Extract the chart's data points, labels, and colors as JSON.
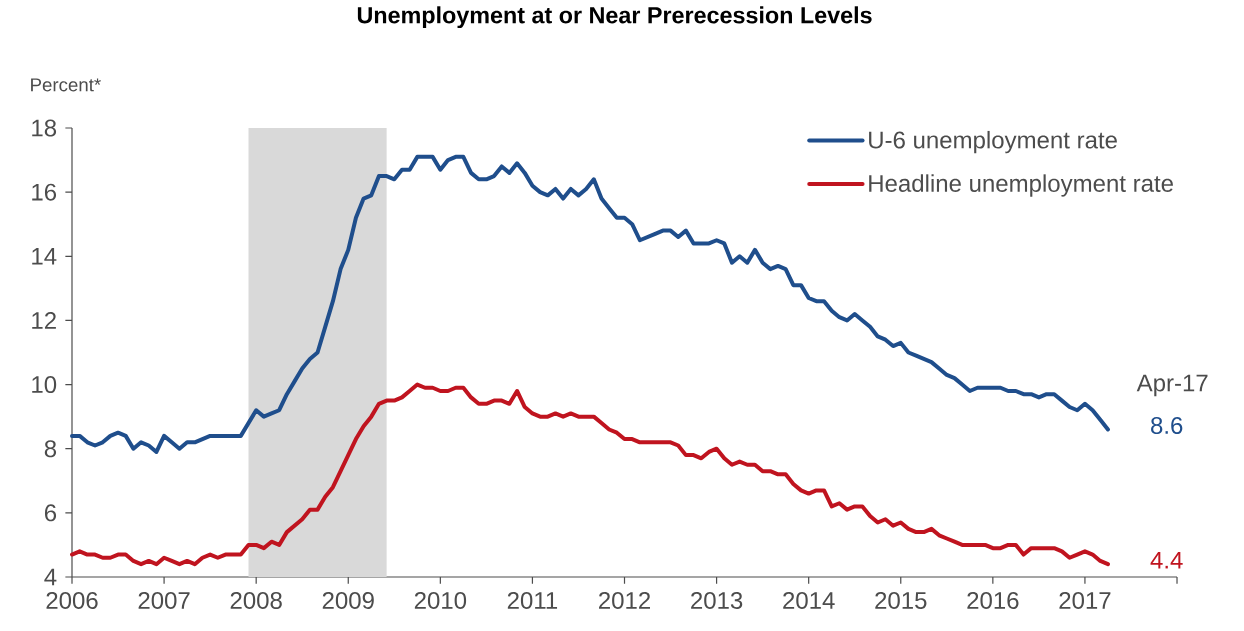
{
  "chart_data": {
    "type": "line",
    "title": "Unemployment at or Near Prerecession Levels",
    "ylabel": "Percent*",
    "x": [
      "2006-01",
      "2006-02",
      "2006-03",
      "2006-04",
      "2006-05",
      "2006-06",
      "2006-07",
      "2006-08",
      "2006-09",
      "2006-10",
      "2006-11",
      "2006-12",
      "2007-01",
      "2007-02",
      "2007-03",
      "2007-04",
      "2007-05",
      "2007-06",
      "2007-07",
      "2007-08",
      "2007-09",
      "2007-10",
      "2007-11",
      "2007-12",
      "2008-01",
      "2008-02",
      "2008-03",
      "2008-04",
      "2008-05",
      "2008-06",
      "2008-07",
      "2008-08",
      "2008-09",
      "2008-10",
      "2008-11",
      "2008-12",
      "2009-01",
      "2009-02",
      "2009-03",
      "2009-04",
      "2009-05",
      "2009-06",
      "2009-07",
      "2009-08",
      "2009-09",
      "2009-10",
      "2009-11",
      "2009-12",
      "2010-01",
      "2010-02",
      "2010-03",
      "2010-04",
      "2010-05",
      "2010-06",
      "2010-07",
      "2010-08",
      "2010-09",
      "2010-10",
      "2010-11",
      "2010-12",
      "2011-01",
      "2011-02",
      "2011-03",
      "2011-04",
      "2011-05",
      "2011-06",
      "2011-07",
      "2011-08",
      "2011-09",
      "2011-10",
      "2011-11",
      "2011-12",
      "2012-01",
      "2012-02",
      "2012-03",
      "2012-04",
      "2012-05",
      "2012-06",
      "2012-07",
      "2012-08",
      "2012-09",
      "2012-10",
      "2012-11",
      "2012-12",
      "2013-01",
      "2013-02",
      "2013-03",
      "2013-04",
      "2013-05",
      "2013-06",
      "2013-07",
      "2013-08",
      "2013-09",
      "2013-10",
      "2013-11",
      "2013-12",
      "2014-01",
      "2014-02",
      "2014-03",
      "2014-04",
      "2014-05",
      "2014-06",
      "2014-07",
      "2014-08",
      "2014-09",
      "2014-10",
      "2014-11",
      "2014-12",
      "2015-01",
      "2015-02",
      "2015-03",
      "2015-04",
      "2015-05",
      "2015-06",
      "2015-07",
      "2015-08",
      "2015-09",
      "2015-10",
      "2015-11",
      "2015-12",
      "2016-01",
      "2016-02",
      "2016-03",
      "2016-04",
      "2016-05",
      "2016-06",
      "2016-07",
      "2016-08",
      "2016-09",
      "2016-10",
      "2016-11",
      "2016-12",
      "2017-01",
      "2017-02",
      "2017-03",
      "2017-04"
    ],
    "series": [
      {
        "name": "U-6 unemployment rate",
        "color": "#1f4e8c",
        "values": [
          8.4,
          8.4,
          8.2,
          8.1,
          8.2,
          8.4,
          8.5,
          8.4,
          8.0,
          8.2,
          8.1,
          7.9,
          8.4,
          8.2,
          8.0,
          8.2,
          8.2,
          8.3,
          8.4,
          8.4,
          8.4,
          8.4,
          8.4,
          8.8,
          9.2,
          9.0,
          9.1,
          9.2,
          9.7,
          10.1,
          10.5,
          10.8,
          11.0,
          11.8,
          12.6,
          13.6,
          14.2,
          15.2,
          15.8,
          15.9,
          16.5,
          16.5,
          16.4,
          16.7,
          16.7,
          17.1,
          17.1,
          17.1,
          16.7,
          17.0,
          17.1,
          17.1,
          16.6,
          16.4,
          16.4,
          16.5,
          16.8,
          16.6,
          16.9,
          16.6,
          16.2,
          16.0,
          15.9,
          16.1,
          15.8,
          16.1,
          15.9,
          16.1,
          16.4,
          15.8,
          15.5,
          15.2,
          15.2,
          15.0,
          14.5,
          14.6,
          14.7,
          14.8,
          14.8,
          14.6,
          14.8,
          14.4,
          14.4,
          14.4,
          14.5,
          14.4,
          13.8,
          14.0,
          13.8,
          14.2,
          13.8,
          13.6,
          13.7,
          13.6,
          13.1,
          13.1,
          12.7,
          12.6,
          12.6,
          12.3,
          12.1,
          12.0,
          12.2,
          12.0,
          11.8,
          11.5,
          11.4,
          11.2,
          11.3,
          11.0,
          10.9,
          10.8,
          10.7,
          10.5,
          10.3,
          10.2,
          10.0,
          9.8,
          9.9,
          9.9,
          9.9,
          9.9,
          9.8,
          9.8,
          9.7,
          9.7,
          9.6,
          9.7,
          9.7,
          9.5,
          9.3,
          9.2,
          9.4,
          9.2,
          8.9,
          8.6
        ]
      },
      {
        "name": "Headline unemployment rate",
        "color": "#c0141f",
        "values": [
          4.7,
          4.8,
          4.7,
          4.7,
          4.6,
          4.6,
          4.7,
          4.7,
          4.5,
          4.4,
          4.5,
          4.4,
          4.6,
          4.5,
          4.4,
          4.5,
          4.4,
          4.6,
          4.7,
          4.6,
          4.7,
          4.7,
          4.7,
          5.0,
          5.0,
          4.9,
          5.1,
          5.0,
          5.4,
          5.6,
          5.8,
          6.1,
          6.1,
          6.5,
          6.8,
          7.3,
          7.8,
          8.3,
          8.7,
          9.0,
          9.4,
          9.5,
          9.5,
          9.6,
          9.8,
          10.0,
          9.9,
          9.9,
          9.8,
          9.8,
          9.9,
          9.9,
          9.6,
          9.4,
          9.4,
          9.5,
          9.5,
          9.4,
          9.8,
          9.3,
          9.1,
          9.0,
          9.0,
          9.1,
          9.0,
          9.1,
          9.0,
          9.0,
          9.0,
          8.8,
          8.6,
          8.5,
          8.3,
          8.3,
          8.2,
          8.2,
          8.2,
          8.2,
          8.2,
          8.1,
          7.8,
          7.8,
          7.7,
          7.9,
          8.0,
          7.7,
          7.5,
          7.6,
          7.5,
          7.5,
          7.3,
          7.3,
          7.2,
          7.2,
          6.9,
          6.7,
          6.6,
          6.7,
          6.7,
          6.2,
          6.3,
          6.1,
          6.2,
          6.2,
          5.9,
          5.7,
          5.8,
          5.6,
          5.7,
          5.5,
          5.4,
          5.4,
          5.5,
          5.3,
          5.2,
          5.1,
          5.0,
          5.0,
          5.0,
          5.0,
          4.9,
          4.9,
          5.0,
          5.0,
          4.7,
          4.9,
          4.9,
          4.9,
          4.9,
          4.8,
          4.6,
          4.7,
          4.8,
          4.7,
          4.5,
          4.4
        ]
      }
    ],
    "xlim": [
      "2006-01",
      "2018-01"
    ],
    "xticks": [
      {
        "value": "2006-01",
        "label": "2006"
      },
      {
        "value": "2007-01",
        "label": "2007"
      },
      {
        "value": "2008-01",
        "label": "2008"
      },
      {
        "value": "2009-01",
        "label": "2009"
      },
      {
        "value": "2010-01",
        "label": "2010"
      },
      {
        "value": "2011-01",
        "label": "2011"
      },
      {
        "value": "2012-01",
        "label": "2012"
      },
      {
        "value": "2013-01",
        "label": "2013"
      },
      {
        "value": "2014-01",
        "label": "2014"
      },
      {
        "value": "2015-01",
        "label": "2015"
      },
      {
        "value": "2016-01",
        "label": "2016"
      },
      {
        "value": "2017-01",
        "label": "2017"
      },
      {
        "value": "2018-01",
        "label": null
      }
    ],
    "ylim": [
      4,
      18
    ],
    "yticks": [
      4,
      6,
      8,
      10,
      12,
      14,
      16,
      18
    ],
    "bands": [
      {
        "axis": "x",
        "from": "2007-12",
        "to": "2009-06",
        "color": "#d9d9d9"
      }
    ],
    "annotations": [
      "Apr-17",
      {
        "text": "8.6",
        "x": "2017-04",
        "y": 8.6
      },
      {
        "text": "4.4",
        "x": "2017-04",
        "y": 4.4
      }
    ],
    "legend": "top right",
    "marker": "none",
    "line_style": "solid",
    "grid": false
  }
}
